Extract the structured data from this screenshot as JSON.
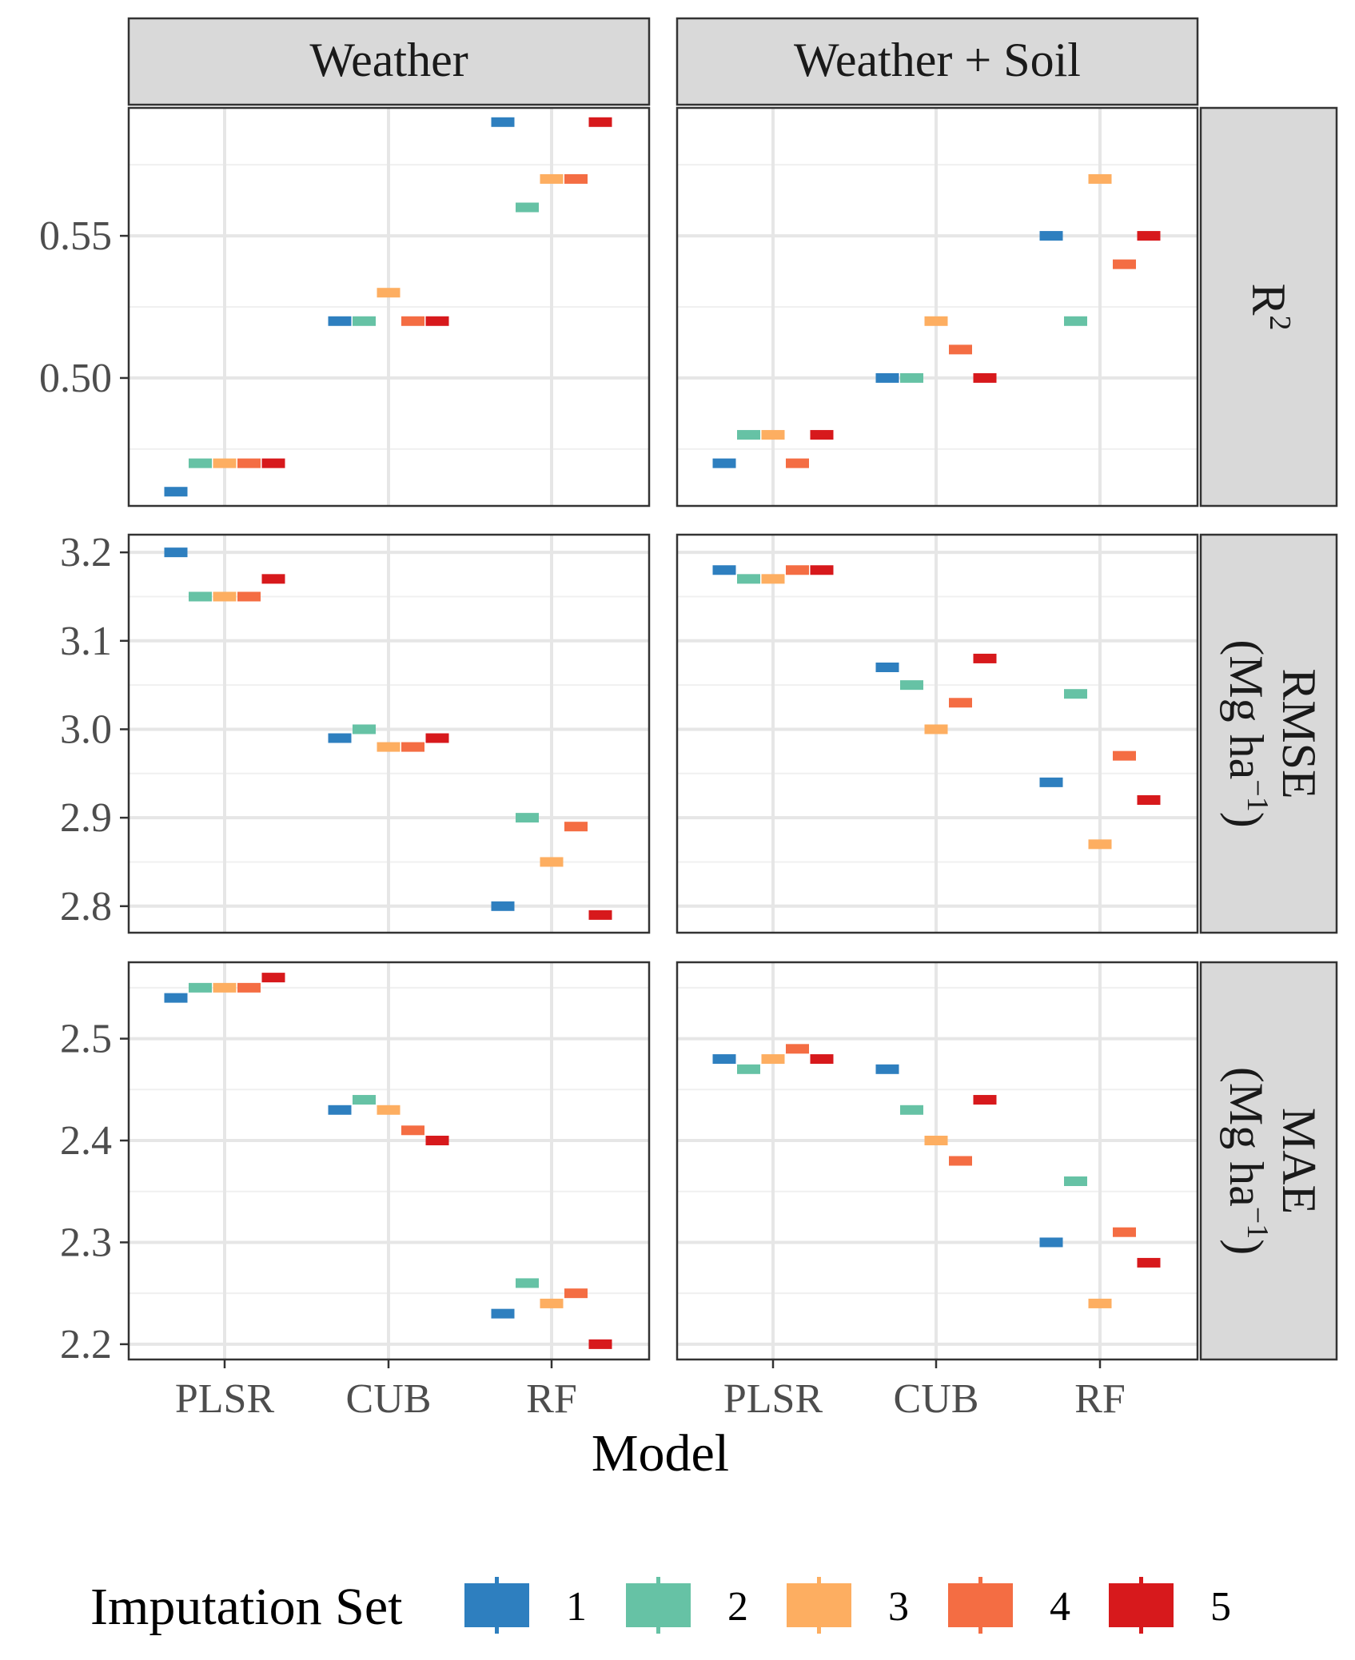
{
  "chart_data": {
    "type": "faceted-crossbar",
    "xlabel": "Model",
    "categories": [
      "PLSR",
      "CUB",
      "RF"
    ],
    "facet_columns": [
      "Weather",
      "Weather + Soil"
    ],
    "legend": {
      "title": "Imputation Set",
      "position": "bottom",
      "entries": [
        {
          "label": "1",
          "color": "#2e7fbf"
        },
        {
          "label": "2",
          "color": "#66c2a5"
        },
        {
          "label": "3",
          "color": "#fdae61"
        },
        {
          "label": "4",
          "color": "#f46d43"
        },
        {
          "label": "5",
          "color": "#d7191c"
        }
      ]
    },
    "rows": [
      {
        "key": "r2",
        "strip_main": "R",
        "strip_sup": "2",
        "ylim": [
          0.455,
          0.595
        ],
        "ticks": [
          "0.50",
          "0.55"
        ],
        "tick_values": [
          0.5,
          0.55
        ],
        "minor": [
          0.475,
          0.525,
          0.575
        ],
        "panels": [
          {
            "PLSR": [
              0.46,
              0.47,
              0.47,
              0.47,
              0.47
            ],
            "CUB": [
              0.52,
              0.52,
              0.53,
              0.52,
              0.52
            ],
            "RF": [
              0.59,
              0.56,
              0.57,
              0.57,
              0.59
            ]
          },
          {
            "PLSR": [
              0.47,
              0.48,
              0.48,
              0.47,
              0.48
            ],
            "CUB": [
              0.5,
              0.5,
              0.52,
              0.51,
              0.5
            ],
            "RF": [
              0.55,
              0.52,
              0.57,
              0.54,
              0.55
            ]
          }
        ]
      },
      {
        "key": "rmse",
        "strip_main": "RMSE",
        "strip_line2_open": "(Mg ha",
        "strip_sup": "−1",
        "strip_line2_close": ")",
        "ylim": [
          2.77,
          3.22
        ],
        "ticks": [
          "2.8",
          "2.9",
          "3.0",
          "3.1",
          "3.2"
        ],
        "tick_values": [
          2.8,
          2.9,
          3.0,
          3.1,
          3.2
        ],
        "minor": [
          2.85,
          2.95,
          3.05,
          3.15
        ],
        "panels": [
          {
            "PLSR": [
              3.2,
              3.15,
              3.15,
              3.15,
              3.17
            ],
            "CUB": [
              2.99,
              3.0,
              2.98,
              2.98,
              2.99
            ],
            "RF": [
              2.8,
              2.9,
              2.85,
              2.89,
              2.79
            ]
          },
          {
            "PLSR": [
              3.18,
              3.17,
              3.17,
              3.18,
              3.18
            ],
            "CUB": [
              3.07,
              3.05,
              3.0,
              3.03,
              3.08
            ],
            "RF": [
              2.94,
              3.04,
              2.87,
              2.97,
              2.92
            ]
          }
        ]
      },
      {
        "key": "mae",
        "strip_main": "MAE",
        "strip_line2_open": "(Mg ha",
        "strip_sup": "−1",
        "strip_line2_close": ")",
        "ylim": [
          2.185,
          2.575
        ],
        "ticks": [
          "2.2",
          "2.3",
          "2.4",
          "2.5"
        ],
        "tick_values": [
          2.2,
          2.3,
          2.4,
          2.5
        ],
        "minor": [
          2.25,
          2.35,
          2.45,
          2.55
        ],
        "panels": [
          {
            "PLSR": [
              2.54,
              2.55,
              2.55,
              2.55,
              2.56
            ],
            "CUB": [
              2.43,
              2.44,
              2.43,
              2.41,
              2.4
            ],
            "RF": [
              2.23,
              2.26,
              2.24,
              2.25,
              2.2
            ]
          },
          {
            "PLSR": [
              2.48,
              2.47,
              2.48,
              2.49,
              2.48
            ],
            "CUB": [
              2.47,
              2.43,
              2.4,
              2.38,
              2.44
            ],
            "RF": [
              2.3,
              2.36,
              2.24,
              2.31,
              2.28
            ]
          }
        ]
      }
    ]
  }
}
